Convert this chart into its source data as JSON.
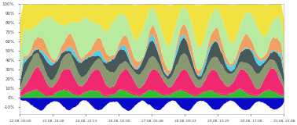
{
  "title": "",
  "xlabel": "",
  "ylabel": "",
  "ylim": [
    -18,
    100
  ],
  "yticks": [
    -10,
    0,
    10,
    20,
    30,
    40,
    50,
    60,
    70,
    80,
    90,
    100
  ],
  "ytick_labels": [
    "-10%",
    "0%",
    "10%",
    "20%",
    "30%",
    "40%",
    "50%",
    "60%",
    "70%",
    "80%",
    "90%",
    "100%"
  ],
  "x_labels": [
    "22.08. 00:00",
    "23.08. 18:28",
    "24.08. 22:13",
    "26.08. 02:00",
    "27.08. 05:48",
    "28.08. 09:33",
    "29.08. 13:20",
    "30.08. 17:08",
    "31.08. 23:48"
  ],
  "background_color": "#ffffff",
  "grid_color": "#cccccc",
  "colors": {
    "yellow": "#f0e040",
    "light_green": "#b8eaa0",
    "cyan": "#50d0e8",
    "orange": "#f0a060",
    "dark_gray": "#485858",
    "gray": "#8a9870",
    "pink": "#f02870",
    "green": "#30c030",
    "blue": "#0808c8",
    "red_pink": "#e01858"
  }
}
